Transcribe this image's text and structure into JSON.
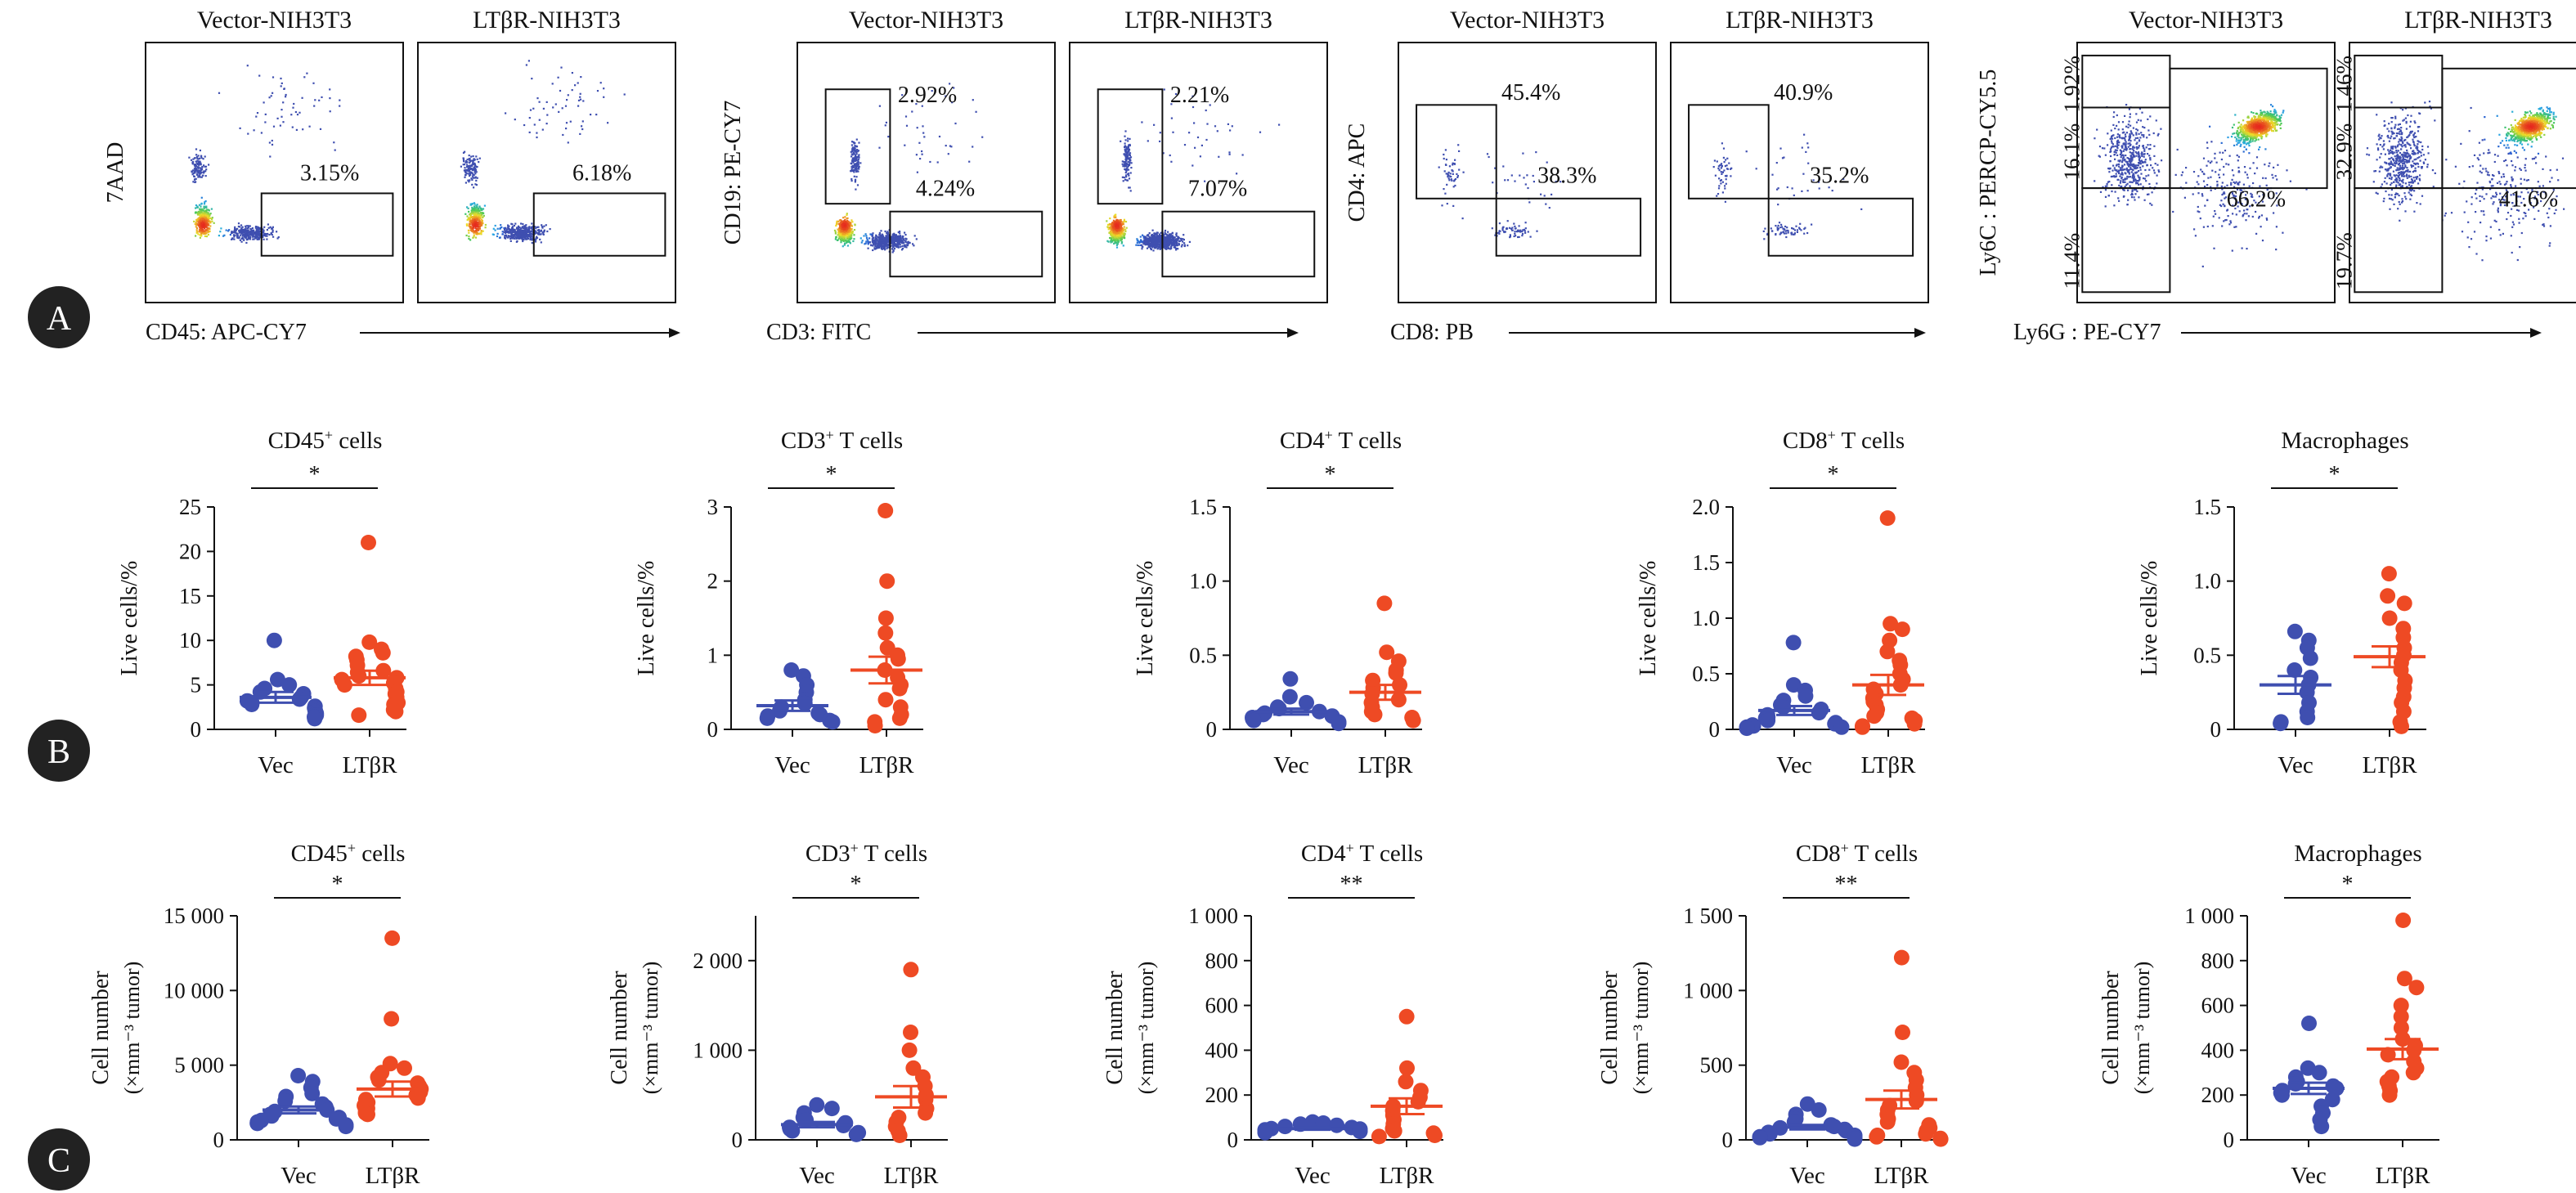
{
  "panel_labels": [
    "A",
    "B",
    "C"
  ],
  "colors": {
    "vec": "#3f4fb0",
    "ltbr": "#ee4a24",
    "frame": "#111111",
    "badge": "#222222"
  },
  "flow": {
    "groups": [
      {
        "col_titles": [
          "Vector-NIH3T3",
          "LTβR-NIH3T3"
        ],
        "y_label": "7AAD",
        "x_label": "CD45: APC-CY7",
        "plot_style": "live",
        "panels": [
          {
            "gates": [
              {
                "value": "3.15%"
              }
            ]
          },
          {
            "gates": [
              {
                "value": "6.18%"
              }
            ]
          }
        ]
      },
      {
        "col_titles": [
          "Vector-NIH3T3",
          "LTβR-NIH3T3"
        ],
        "y_label": "CD19: PE-CY7",
        "x_label": "CD3: FITC",
        "plot_style": "cd3",
        "panels": [
          {
            "gates": [
              {
                "value": "2.92%"
              },
              {
                "value": "4.24%"
              }
            ]
          },
          {
            "gates": [
              {
                "value": "2.21%"
              },
              {
                "value": "7.07%"
              }
            ]
          }
        ]
      },
      {
        "col_titles": [
          "Vector-NIH3T3",
          "LTβR-NIH3T3"
        ],
        "y_label": "CD4: APC",
        "x_label": "CD8: PB",
        "plot_style": "cd4",
        "panels": [
          {
            "gates": [
              {
                "value": "45.4%"
              },
              {
                "value": "38.3%"
              }
            ]
          },
          {
            "gates": [
              {
                "value": "40.9%"
              },
              {
                "value": "35.2%"
              }
            ]
          }
        ]
      },
      {
        "col_titles": [
          "Vector-NIH3T3",
          "LTβR-NIH3T3"
        ],
        "y_label": "Ly6C : PERCP-CY5.5",
        "x_label": "Ly6G : PE-CY7",
        "plot_style": "myeloid",
        "panels": [
          {
            "gates": [
              {
                "value": "1.92%"
              },
              {
                "value": "16.1%"
              },
              {
                "value": "66.2%"
              },
              {
                "value": "11.4%"
              }
            ]
          },
          {
            "gates": [
              {
                "value": "1.46%"
              },
              {
                "value": "32.9%"
              },
              {
                "value": "41.6%"
              },
              {
                "value": "19.7%"
              }
            ]
          }
        ]
      }
    ]
  },
  "chart_data": [
    {
      "type": "scatter",
      "row": "B",
      "title": "CD45",
      "title_sup": "+",
      "title_rest": " cells",
      "ylabel": "Live cells/%",
      "ylabel2": "",
      "categories": [
        "Vec",
        "LTβR"
      ],
      "ylim": [
        0,
        25
      ],
      "yticks": [
        0,
        5,
        10,
        15,
        20,
        25
      ],
      "tick_labels": [
        "0",
        "5",
        "10",
        "15",
        "20",
        "25"
      ],
      "significance": "*",
      "series": [
        {
          "values": [
            10.0,
            5.6,
            5.0,
            4.6,
            4.2,
            4.0,
            3.6,
            3.4,
            3.2,
            3.0,
            2.8,
            2.6,
            2.4,
            2.2,
            2.0,
            1.8,
            1.6,
            1.4,
            1.2
          ],
          "mean": 3.6,
          "sem": 0.6
        },
        {
          "values": [
            21.0,
            9.8,
            9.0,
            8.6,
            8.2,
            7.8,
            7.2,
            6.6,
            6.4,
            6.0,
            5.8,
            5.6,
            5.2,
            5.0,
            4.6,
            4.2,
            4.0,
            3.6,
            3.2,
            3.0,
            2.8,
            2.2,
            2.0,
            1.6
          ],
          "mean": 5.8,
          "sem": 0.8
        }
      ]
    },
    {
      "type": "scatter",
      "row": "B",
      "title": "CD3",
      "title_sup": "+",
      "title_rest": " T cells",
      "ylabel": "Live cells/%",
      "ylabel2": "",
      "categories": [
        "Vec",
        "LTβR"
      ],
      "ylim": [
        0,
        3
      ],
      "yticks": [
        0,
        1,
        2,
        3
      ],
      "tick_labels": [
        "0",
        "1",
        "2",
        "3"
      ],
      "significance": "*",
      "series": [
        {
          "values": [
            0.8,
            0.72,
            0.6,
            0.5,
            0.4,
            0.35,
            0.3,
            0.25,
            0.22,
            0.2,
            0.18,
            0.15,
            0.12,
            0.1
          ],
          "mean": 0.32,
          "sem": 0.07
        },
        {
          "values": [
            2.95,
            2.0,
            1.5,
            1.3,
            1.1,
            1.0,
            0.95,
            0.8,
            0.7,
            0.6,
            0.55,
            0.4,
            0.3,
            0.2,
            0.15,
            0.1,
            0.05
          ],
          "mean": 0.8,
          "sem": 0.18
        }
      ]
    },
    {
      "type": "scatter",
      "row": "B",
      "title": "CD4",
      "title_sup": "+",
      "title_rest": " T cells",
      "ylabel": "Live cells/%",
      "ylabel2": "",
      "categories": [
        "Vec",
        "LTβR"
      ],
      "ylim": [
        0,
        1.5
      ],
      "yticks": [
        0,
        0.5,
        1.0,
        1.5
      ],
      "tick_labels": [
        "0",
        "0.5",
        "1.0",
        "1.5"
      ],
      "significance": "*",
      "series": [
        {
          "values": [
            0.34,
            0.22,
            0.18,
            0.15,
            0.14,
            0.12,
            0.11,
            0.1,
            0.09,
            0.08,
            0.07,
            0.06,
            0.05,
            0.04
          ],
          "mean": 0.12,
          "sem": 0.02
        },
        {
          "values": [
            0.85,
            0.52,
            0.46,
            0.4,
            0.38,
            0.33,
            0.3,
            0.28,
            0.24,
            0.2,
            0.18,
            0.15,
            0.12,
            0.1,
            0.08,
            0.06
          ],
          "mean": 0.25,
          "sem": 0.05
        }
      ]
    },
    {
      "type": "scatter",
      "row": "B",
      "title": "CD8",
      "title_sup": "+",
      "title_rest": " T cells",
      "ylabel": "Live cells/%",
      "ylabel2": "",
      "categories": [
        "Vec",
        "LTβR"
      ],
      "ylim": [
        0,
        2.0
      ],
      "yticks": [
        0,
        0.5,
        1.0,
        1.5,
        2.0
      ],
      "tick_labels": [
        "0",
        "0.5",
        "1.0",
        "1.5",
        "2.0"
      ],
      "significance": "*",
      "series": [
        {
          "values": [
            0.78,
            0.4,
            0.35,
            0.3,
            0.26,
            0.22,
            0.2,
            0.18,
            0.15,
            0.13,
            0.11,
            0.1,
            0.08,
            0.06,
            0.05,
            0.04,
            0.03,
            0.02,
            0.02,
            0.01
          ],
          "mean": 0.17,
          "sem": 0.04
        },
        {
          "values": [
            1.9,
            0.95,
            0.9,
            0.8,
            0.7,
            0.62,
            0.58,
            0.5,
            0.45,
            0.4,
            0.36,
            0.32,
            0.28,
            0.25,
            0.22,
            0.18,
            0.15,
            0.12,
            0.1,
            0.08,
            0.05,
            0.03,
            0.02
          ],
          "mean": 0.4,
          "sem": 0.09
        }
      ]
    },
    {
      "type": "scatter",
      "row": "B",
      "title": "Macrophages",
      "title_sup": "",
      "title_rest": "",
      "ylabel": "Live cells/%",
      "ylabel2": "",
      "categories": [
        "Vec",
        "LTβR"
      ],
      "ylim": [
        0,
        1.5
      ],
      "yticks": [
        0,
        0.5,
        1.0,
        1.5
      ],
      "tick_labels": [
        "0",
        "0.5",
        "1.0",
        "1.5"
      ],
      "significance": "*",
      "series": [
        {
          "values": [
            0.66,
            0.6,
            0.55,
            0.48,
            0.4,
            0.35,
            0.3,
            0.25,
            0.18,
            0.12,
            0.08,
            0.05,
            0.04
          ],
          "mean": 0.3,
          "sem": 0.06
        },
        {
          "values": [
            1.05,
            0.9,
            0.85,
            0.75,
            0.68,
            0.62,
            0.55,
            0.5,
            0.45,
            0.4,
            0.33,
            0.28,
            0.22,
            0.18,
            0.12,
            0.05,
            0.02
          ],
          "mean": 0.49,
          "sem": 0.07
        }
      ]
    },
    {
      "type": "scatter",
      "row": "C",
      "title": "CD45",
      "title_sup": "+",
      "title_rest": " cells",
      "ylabel": "Cell number",
      "ylabel2": "(×mm⁻³ tumor)",
      "categories": [
        "Vec",
        "LTβR"
      ],
      "ylim": [
        0,
        15000
      ],
      "yticks": [
        0,
        5000,
        10000,
        15000
      ],
      "tick_labels": [
        "0",
        "5 000",
        "10 000",
        "15 000"
      ],
      "significance": "*",
      "series": [
        {
          "values": [
            4300,
            3900,
            3500,
            3100,
            2900,
            2600,
            2400,
            2200,
            2000,
            1900,
            1700,
            1600,
            1500,
            1400,
            1300,
            1200,
            1100,
            1000,
            900
          ],
          "mean": 2000,
          "sem": 230
        },
        {
          "values": [
            13500,
            8100,
            5100,
            4800,
            4500,
            4200,
            4000,
            3800,
            3600,
            3400,
            3200,
            3000,
            2800,
            2700,
            2500,
            2300,
            2100,
            2000,
            1800,
            1700
          ],
          "mean": 3400,
          "sem": 500
        }
      ]
    },
    {
      "type": "scatter",
      "row": "C",
      "title": "CD3",
      "title_sup": "+",
      "title_rest": " T cells",
      "ylabel": "Cell number",
      "ylabel2": "(×mm⁻³ tumor)",
      "categories": [
        "Vec",
        "LTβR"
      ],
      "ylim": [
        0,
        2500
      ],
      "yticks": [
        0,
        1000,
        2000
      ],
      "tick_labels": [
        "0",
        "1 000",
        "2 000"
      ],
      "significance": "*",
      "series": [
        {
          "values": [
            390,
            350,
            300,
            250,
            220,
            190,
            160,
            140,
            120,
            100,
            80,
            60
          ],
          "mean": 170,
          "sem": 30
        },
        {
          "values": [
            1900,
            1200,
            1000,
            800,
            700,
            600,
            500,
            450,
            350,
            300,
            250,
            200,
            150,
            100,
            50
          ],
          "mean": 480,
          "sem": 120
        }
      ]
    },
    {
      "type": "scatter",
      "row": "C",
      "title": "CD4",
      "title_sup": "+",
      "title_rest": " T cells",
      "ylabel": "Cell number",
      "ylabel2": "(×mm⁻³ tumor)",
      "categories": [
        "Vec",
        "LTβR"
      ],
      "ylim": [
        0,
        1000
      ],
      "yticks": [
        0,
        200,
        400,
        600,
        800,
        1000
      ],
      "tick_labels": [
        "0",
        "200",
        "400",
        "600",
        "800",
        "1 000"
      ],
      "significance": "**",
      "series": [
        {
          "values": [
            80,
            75,
            70,
            65,
            60,
            55,
            50,
            48,
            45,
            42,
            40,
            38,
            35,
            32
          ],
          "mean": 50,
          "sem": 5
        },
        {
          "values": [
            550,
            320,
            260,
            220,
            190,
            170,
            150,
            130,
            110,
            90,
            70,
            50,
            40,
            30,
            20,
            15
          ],
          "mean": 150,
          "sem": 35
        }
      ]
    },
    {
      "type": "scatter",
      "row": "C",
      "title": "CD8",
      "title_sup": "+",
      "title_rest": " T cells",
      "ylabel": "Cell number",
      "ylabel2": "(×mm⁻³ tumor)",
      "categories": [
        "Vec",
        "LTβR"
      ],
      "ylim": [
        0,
        1500
      ],
      "yticks": [
        0,
        500,
        1000,
        1500
      ],
      "tick_labels": [
        "0",
        "500",
        "1 000",
        "1 500"
      ],
      "significance": "**",
      "series": [
        {
          "values": [
            240,
            200,
            170,
            140,
            120,
            100,
            90,
            80,
            70,
            60,
            50,
            40,
            30,
            25,
            20,
            15,
            10,
            5
          ],
          "mean": 85,
          "sem": 15
        },
        {
          "values": [
            1220,
            720,
            520,
            450,
            400,
            350,
            300,
            260,
            230,
            200,
            170,
            140,
            120,
            100,
            80,
            60,
            40,
            30,
            20,
            10,
            5
          ],
          "mean": 270,
          "sem": 60
        }
      ]
    },
    {
      "type": "scatter",
      "row": "C",
      "title": "Macrophages",
      "title_sup": "",
      "title_rest": "",
      "ylabel": "Cell number",
      "ylabel2": "(×mm⁻³ tumor)",
      "categories": [
        "Vec",
        "LTβR"
      ],
      "ylim": [
        0,
        1000
      ],
      "yticks": [
        0,
        200,
        400,
        600,
        800,
        1000
      ],
      "tick_labels": [
        "0",
        "200",
        "400",
        "600",
        "800",
        "1 000"
      ],
      "significance": "*",
      "series": [
        {
          "values": [
            520,
            320,
            300,
            280,
            260,
            250,
            240,
            230,
            220,
            210,
            200,
            180,
            150,
            120,
            90,
            60
          ],
          "mean": 230,
          "sem": 25
        },
        {
          "values": [
            980,
            720,
            680,
            600,
            550,
            500,
            450,
            420,
            400,
            380,
            350,
            320,
            300,
            280,
            260,
            240,
            220,
            200
          ],
          "mean": 405,
          "sem": 45
        }
      ]
    }
  ]
}
